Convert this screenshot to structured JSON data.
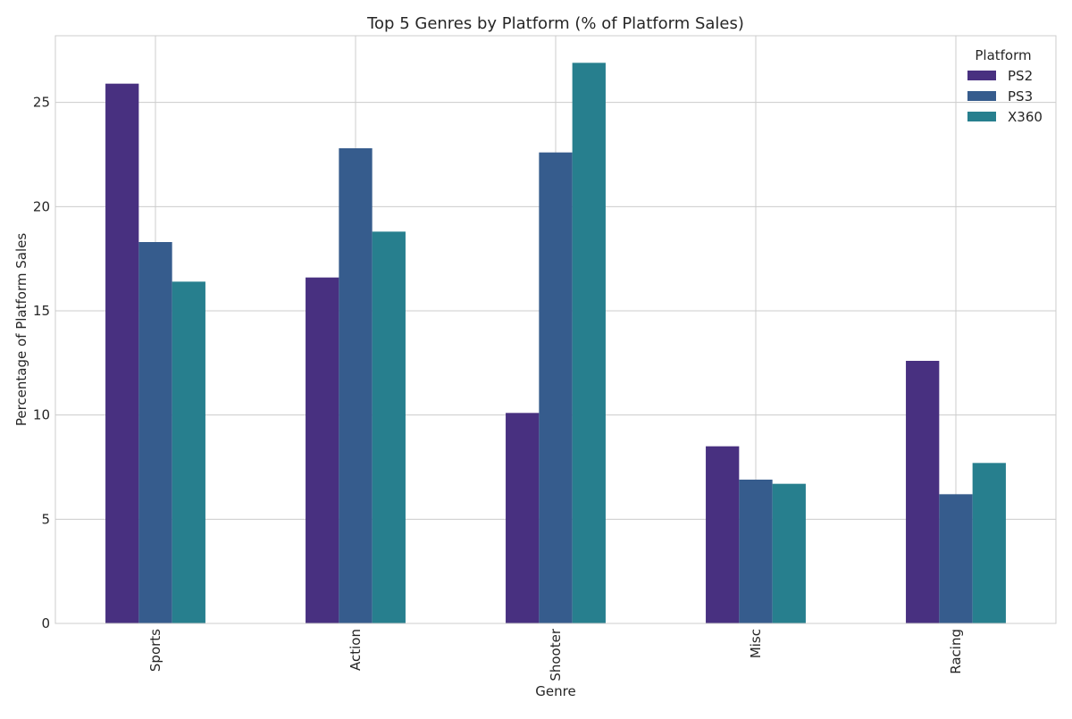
{
  "chart_data": {
    "type": "bar",
    "title": "Top 5 Genres by Platform (% of Platform Sales)",
    "xlabel": "Genre",
    "ylabel": "Percentage of Platform Sales",
    "categories": [
      "Sports",
      "Action",
      "Shooter",
      "Misc",
      "Racing"
    ],
    "series": [
      {
        "name": "PS2",
        "color": "#483080",
        "values": [
          25.9,
          16.6,
          10.1,
          8.5,
          12.6
        ]
      },
      {
        "name": "PS3",
        "color": "#365C8D",
        "values": [
          18.3,
          22.8,
          22.6,
          6.9,
          6.2
        ]
      },
      {
        "name": "X360",
        "color": "#277F8E",
        "values": [
          16.4,
          18.8,
          26.9,
          6.7,
          7.7
        ]
      }
    ],
    "ylim": [
      0,
      28.2
    ],
    "yticks": [
      0,
      5,
      10,
      15,
      20,
      25
    ],
    "grid": true,
    "legend": {
      "title": "Platform",
      "position": "top-right"
    }
  }
}
